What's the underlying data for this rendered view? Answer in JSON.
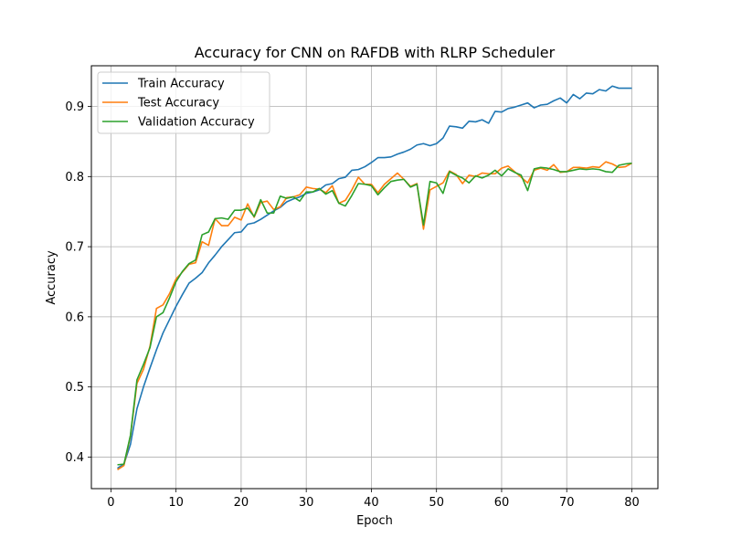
{
  "chart_data": {
    "type": "line",
    "title": "Accuracy for CNN on RAFDB with RLRP Scheduler",
    "xlabel": "Epoch",
    "ylabel": "Accuracy",
    "xlim": [
      -3,
      84
    ],
    "ylim": [
      0.355,
      0.958
    ],
    "xticks": [
      0,
      10,
      20,
      30,
      40,
      50,
      60,
      70,
      80
    ],
    "yticks": [
      0.4,
      0.5,
      0.6,
      0.7,
      0.8,
      0.9
    ],
    "ytick_labels": [
      "0.4",
      "0.5",
      "0.6",
      "0.7",
      "0.8",
      "0.9"
    ],
    "grid": true,
    "legend_position": "upper-left",
    "x": [
      1,
      2,
      3,
      4,
      5,
      6,
      7,
      8,
      9,
      10,
      11,
      12,
      13,
      14,
      15,
      16,
      17,
      18,
      19,
      20,
      21,
      22,
      23,
      24,
      25,
      26,
      27,
      28,
      29,
      30,
      31,
      32,
      33,
      34,
      35,
      36,
      37,
      38,
      39,
      40,
      41,
      42,
      43,
      44,
      45,
      46,
      47,
      48,
      49,
      50,
      51,
      52,
      53,
      54,
      55,
      56,
      57,
      58,
      59,
      60,
      61,
      62,
      63,
      64,
      65,
      66,
      67,
      68,
      69,
      70,
      71,
      72,
      73,
      74,
      75,
      76,
      77,
      78,
      79,
      80
    ],
    "series": [
      {
        "name": "Train Accuracy",
        "color": "#1f77b4",
        "values": [
          0.384,
          0.39,
          0.418,
          0.469,
          0.5,
          0.527,
          0.553,
          0.577,
          0.596,
          0.615,
          0.632,
          0.648,
          0.655,
          0.663,
          0.677,
          0.688,
          0.7,
          0.71,
          0.72,
          0.721,
          0.732,
          0.734,
          0.739,
          0.745,
          0.751,
          0.756,
          0.764,
          0.768,
          0.771,
          0.776,
          0.778,
          0.781,
          0.788,
          0.79,
          0.797,
          0.799,
          0.809,
          0.81,
          0.814,
          0.82,
          0.827,
          0.827,
          0.828,
          0.832,
          0.835,
          0.839,
          0.845,
          0.847,
          0.844,
          0.847,
          0.855,
          0.872,
          0.871,
          0.869,
          0.879,
          0.878,
          0.881,
          0.876,
          0.893,
          0.892,
          0.897,
          0.899,
          0.902,
          0.905,
          0.898,
          0.902,
          0.903,
          0.908,
          0.912,
          0.905,
          0.917,
          0.911,
          0.919,
          0.918,
          0.924,
          0.922,
          0.929,
          0.926,
          0.926,
          0.926
        ]
      },
      {
        "name": "Test Accuracy",
        "color": "#ff7f0e",
        "values": [
          0.382,
          0.388,
          0.43,
          0.505,
          0.525,
          0.558,
          0.612,
          0.617,
          0.633,
          0.654,
          0.664,
          0.675,
          0.677,
          0.707,
          0.702,
          0.74,
          0.73,
          0.73,
          0.742,
          0.738,
          0.761,
          0.742,
          0.763,
          0.765,
          0.753,
          0.757,
          0.77,
          0.771,
          0.774,
          0.785,
          0.783,
          0.782,
          0.777,
          0.787,
          0.762,
          0.766,
          0.781,
          0.799,
          0.789,
          0.789,
          0.777,
          0.789,
          0.797,
          0.805,
          0.796,
          0.786,
          0.79,
          0.725,
          0.781,
          0.786,
          0.791,
          0.808,
          0.803,
          0.79,
          0.802,
          0.8,
          0.805,
          0.804,
          0.804,
          0.812,
          0.815,
          0.807,
          0.799,
          0.791,
          0.809,
          0.812,
          0.809,
          0.817,
          0.806,
          0.807,
          0.813,
          0.813,
          0.812,
          0.814,
          0.813,
          0.821,
          0.818,
          0.813,
          0.814,
          0.819
        ]
      },
      {
        "name": "Validation Accuracy",
        "color": "#2ca02c",
        "values": [
          0.389,
          0.39,
          0.431,
          0.51,
          0.532,
          0.556,
          0.6,
          0.606,
          0.627,
          0.65,
          0.665,
          0.676,
          0.681,
          0.717,
          0.721,
          0.74,
          0.741,
          0.739,
          0.752,
          0.752,
          0.755,
          0.743,
          0.767,
          0.748,
          0.748,
          0.772,
          0.769,
          0.771,
          0.765,
          0.778,
          0.778,
          0.783,
          0.775,
          0.78,
          0.762,
          0.758,
          0.773,
          0.79,
          0.789,
          0.787,
          0.774,
          0.784,
          0.793,
          0.795,
          0.796,
          0.785,
          0.789,
          0.731,
          0.793,
          0.791,
          0.776,
          0.807,
          0.802,
          0.798,
          0.791,
          0.801,
          0.798,
          0.802,
          0.809,
          0.801,
          0.811,
          0.806,
          0.802,
          0.78,
          0.811,
          0.813,
          0.812,
          0.81,
          0.807,
          0.807,
          0.809,
          0.811,
          0.81,
          0.811,
          0.81,
          0.807,
          0.806,
          0.816,
          0.818,
          0.819
        ]
      }
    ]
  }
}
